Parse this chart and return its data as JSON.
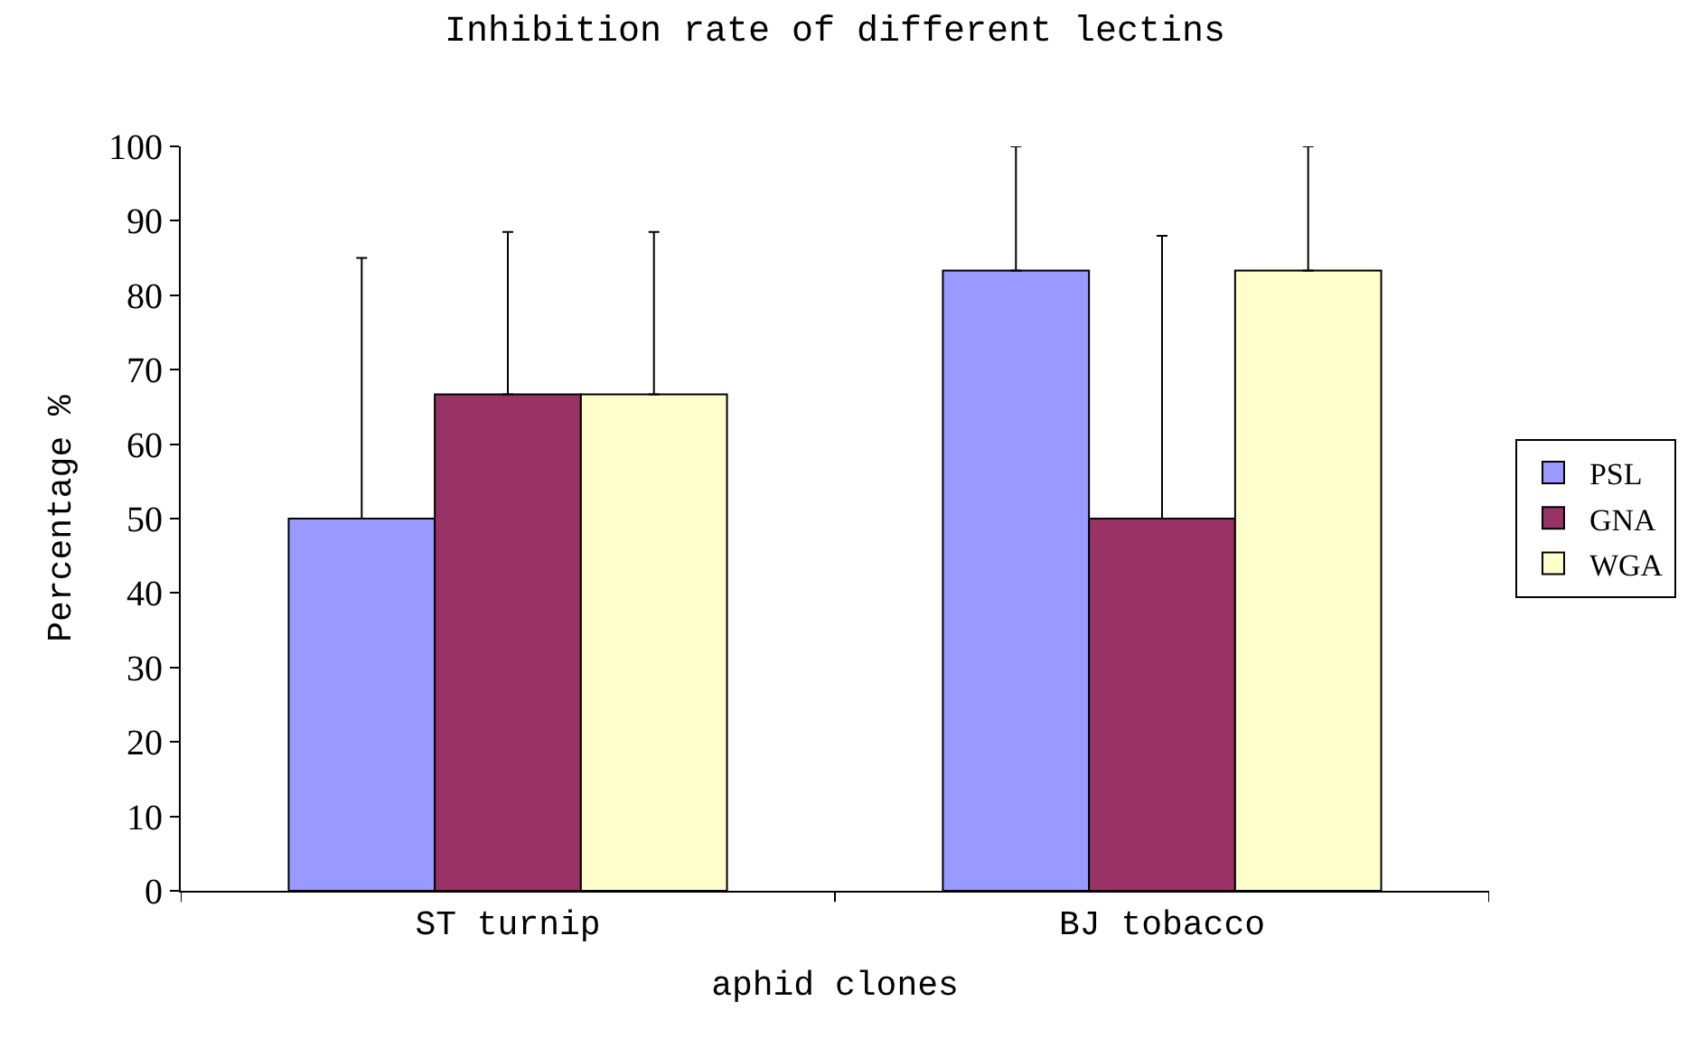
{
  "chart_data": {
    "type": "bar",
    "title": "Inhibition rate of different lectins",
    "xlabel": "aphid clones",
    "ylabel": "Percentage %",
    "categories": [
      "ST turnip",
      "BJ tobacco"
    ],
    "series": [
      {
        "name": "PSL",
        "color": "#9999ff",
        "values": [
          50,
          83.3
        ],
        "errors": [
          [
            50,
            85
          ],
          [
            83.3,
            100
          ]
        ]
      },
      {
        "name": "GNA",
        "color": "#993366",
        "values": [
          66.7,
          50
        ],
        "errors": [
          [
            66.7,
            88.5
          ],
          [
            50,
            88
          ]
        ]
      },
      {
        "name": "WGA",
        "color": "#ffffcc",
        "values": [
          66.7,
          83.3
        ],
        "errors": [
          [
            66.7,
            88.5
          ],
          [
            83.3,
            100
          ]
        ]
      }
    ],
    "ylim": [
      0,
      100
    ],
    "yticks": [
      0,
      10,
      20,
      30,
      40,
      50,
      60,
      70,
      80,
      90,
      100
    ],
    "legend": "right"
  }
}
